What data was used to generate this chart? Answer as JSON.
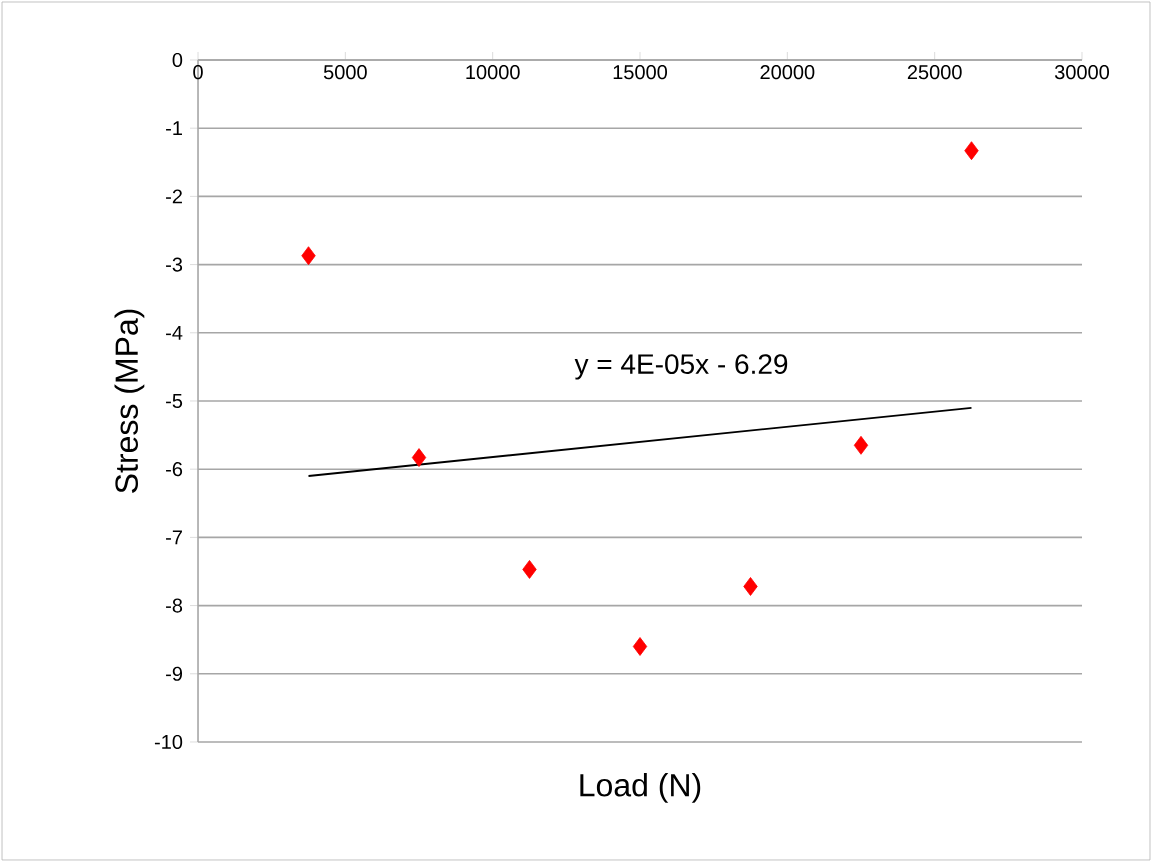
{
  "chart_data": {
    "type": "scatter",
    "xlabel": "Load (N)",
    "ylabel": "Stress (MPa)",
    "xlim": [
      0,
      30000
    ],
    "ylim": [
      -10,
      0
    ],
    "xticks": [
      0,
      5000,
      10000,
      15000,
      20000,
      25000,
      30000
    ],
    "yticks": [
      -10,
      -9,
      -8,
      -7,
      -6,
      -5,
      -4,
      -3,
      -2,
      -1,
      0
    ],
    "grid": "y",
    "series": [
      {
        "marker": "diamond",
        "color": "#ff0000",
        "x": [
          3750,
          7500,
          11250,
          15000,
          18750,
          22500,
          26250
        ],
        "values": [
          -2.87,
          -5.83,
          -7.47,
          -8.6,
          -7.72,
          -5.65,
          -1.33
        ]
      },
      {
        "type": "line",
        "marker": "none",
        "color": "#000000",
        "x": [
          3750,
          26250
        ],
        "values": [
          -6.1,
          -5.1
        ]
      }
    ],
    "annotations": [
      "y = 4E-05x - 6.29"
    ]
  }
}
